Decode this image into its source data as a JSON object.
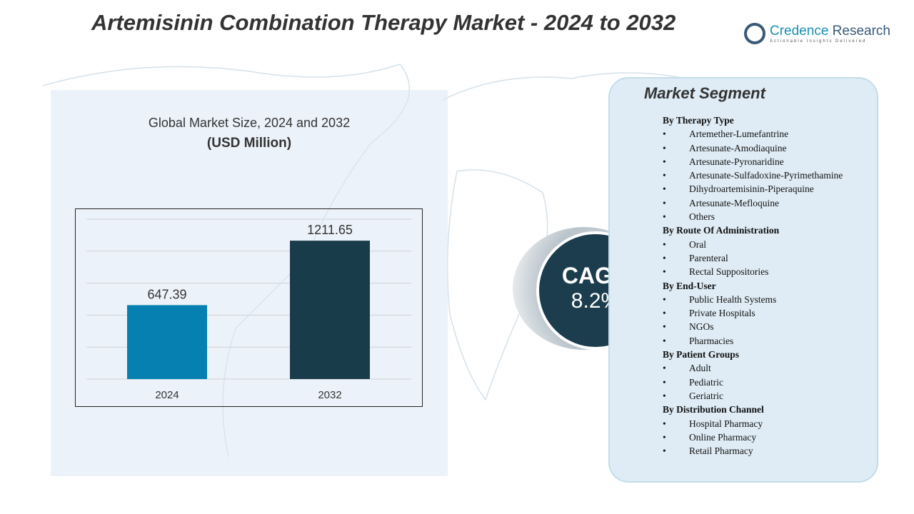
{
  "title": "Artemisinin Combination Therapy Market - 2024 to 2032",
  "logo": {
    "name_1": "Credence",
    "name_2": " Research",
    "tagline": "Actionable Insights Delivered"
  },
  "chart_heading": "Global Market Size, 2024 and 2032",
  "chart_unit": "(USD Million)",
  "chart_data": {
    "type": "bar",
    "categories": [
      "2024",
      "2032"
    ],
    "values": [
      647.39,
      1211.65
    ],
    "labels": [
      "647.39",
      "1211.65"
    ],
    "colors": [
      "#0580b0",
      "#193c4a"
    ],
    "ylim": [
      0,
      1400
    ],
    "grid": true,
    "title": "",
    "xlabel": "",
    "ylabel": ""
  },
  "cagr": {
    "label": "CAGR",
    "value": "8.2%"
  },
  "segment": {
    "title": "Market Segment",
    "groups": [
      {
        "name": "By Therapy  Type",
        "items": [
          "Artemether-Lumefantrine",
          "Artesunate-Amodiaquine",
          "Artesunate-Pyronaridine",
          "Artesunate-Sulfadoxine-Pyrimethamine",
          "Dihydroartemisinin-Piperaquine",
          "Artesunate-Mefloquine",
          "Others"
        ]
      },
      {
        "name": "By Route Of Administration",
        "items": [
          "Oral",
          "Parenteral",
          "Rectal  Suppositories"
        ]
      },
      {
        "name": "By End-User",
        "items": [
          "Public Health Systems",
          "Private Hospitals",
          "NGOs",
          "Pharmacies"
        ]
      },
      {
        "name": "By Patient Groups",
        "items": [
          "Adult",
          "Pediatric",
          "Geriatric"
        ]
      },
      {
        "name": "By Distribution  Channel",
        "items": [
          "Hospital  Pharmacy",
          "Online  Pharmacy",
          "Retail  Pharmacy"
        ]
      }
    ]
  }
}
